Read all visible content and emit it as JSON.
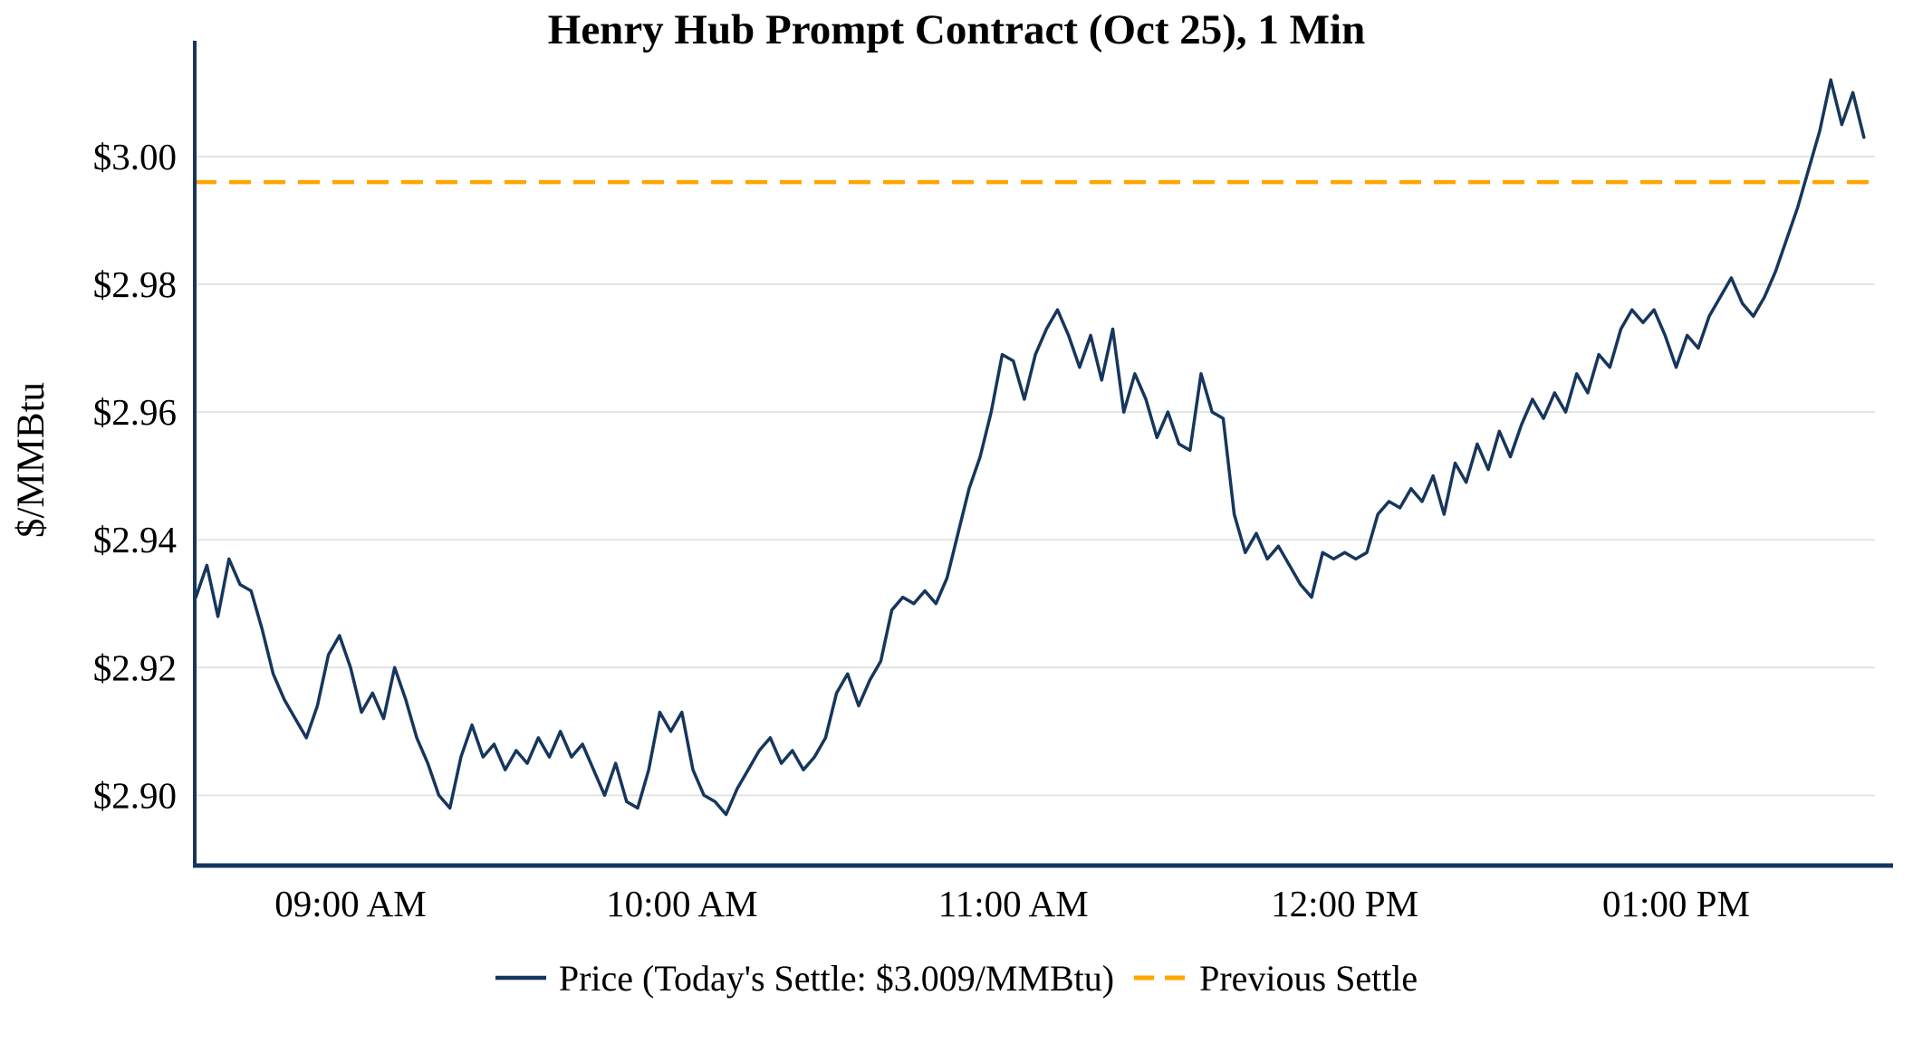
{
  "title": "Henry Hub Prompt Contract (Oct 25), 1 Min",
  "colors": {
    "price_line": "#16365c",
    "previous_settle": "#ffa500",
    "grid": "#e3e3e3",
    "axis": "#16365c",
    "text": "#000000"
  },
  "legend": {
    "price_label": "Price (Today's Settle: $3.009/MMBtu)",
    "previous_settle_label": "Previous Settle"
  },
  "chart_data": {
    "type": "line",
    "title": "Henry Hub Prompt Contract (Oct 25), 1 Min",
    "xlabel": "",
    "ylabel": "$/MMBtu",
    "grid": "horizontal",
    "legend_position": "bottom-center",
    "x_start_hour": 8.5333,
    "x_interval_minutes": 2,
    "xlim_hours": [
      8.53,
      13.6
    ],
    "ylim": [
      2.889,
      3.016
    ],
    "previous_settle": 2.996,
    "todays_settle": 3.009,
    "x_ticks": {
      "hours": [
        9,
        10,
        11,
        12,
        13
      ],
      "labels": [
        "09:00 AM",
        "10:00 AM",
        "11:00 AM",
        "12:00 PM",
        "01:00 PM"
      ]
    },
    "y_ticks": {
      "values": [
        2.9,
        2.92,
        2.94,
        2.96,
        2.98,
        3.0
      ],
      "labels": [
        "$2.90",
        "$2.92",
        "$2.94",
        "$2.96",
        "$2.98",
        "$3.00"
      ]
    },
    "series": [
      {
        "name": "Price",
        "values": [
          2.931,
          2.936,
          2.928,
          2.937,
          2.933,
          2.932,
          2.926,
          2.919,
          2.915,
          2.912,
          2.909,
          2.914,
          2.922,
          2.925,
          2.92,
          2.913,
          2.916,
          2.912,
          2.92,
          2.915,
          2.909,
          2.905,
          2.9,
          2.898,
          2.906,
          2.911,
          2.906,
          2.908,
          2.904,
          2.907,
          2.905,
          2.909,
          2.906,
          2.91,
          2.906,
          2.908,
          2.904,
          2.9,
          2.905,
          2.899,
          2.898,
          2.904,
          2.913,
          2.91,
          2.913,
          2.904,
          2.9,
          2.899,
          2.897,
          2.901,
          2.904,
          2.907,
          2.909,
          2.905,
          2.907,
          2.904,
          2.906,
          2.909,
          2.916,
          2.919,
          2.914,
          2.918,
          2.921,
          2.929,
          2.931,
          2.93,
          2.932,
          2.93,
          2.934,
          2.941,
          2.948,
          2.953,
          2.96,
          2.969,
          2.968,
          2.962,
          2.969,
          2.973,
          2.976,
          2.972,
          2.967,
          2.972,
          2.965,
          2.973,
          2.96,
          2.966,
          2.962,
          2.956,
          2.96,
          2.955,
          2.954,
          2.966,
          2.96,
          2.959,
          2.944,
          2.938,
          2.941,
          2.937,
          2.939,
          2.936,
          2.933,
          2.931,
          2.938,
          2.937,
          2.938,
          2.937,
          2.938,
          2.944,
          2.946,
          2.945,
          2.948,
          2.946,
          2.95,
          2.944,
          2.952,
          2.949,
          2.955,
          2.951,
          2.957,
          2.953,
          2.958,
          2.962,
          2.959,
          2.963,
          2.96,
          2.966,
          2.963,
          2.969,
          2.967,
          2.973,
          2.976,
          2.974,
          2.976,
          2.972,
          2.967,
          2.972,
          2.97,
          2.975,
          2.978,
          2.981,
          2.977,
          2.975,
          2.978,
          2.982,
          2.987,
          2.992,
          2.998,
          3.004,
          3.012,
          3.005,
          3.01,
          3.003
        ]
      }
    ]
  }
}
